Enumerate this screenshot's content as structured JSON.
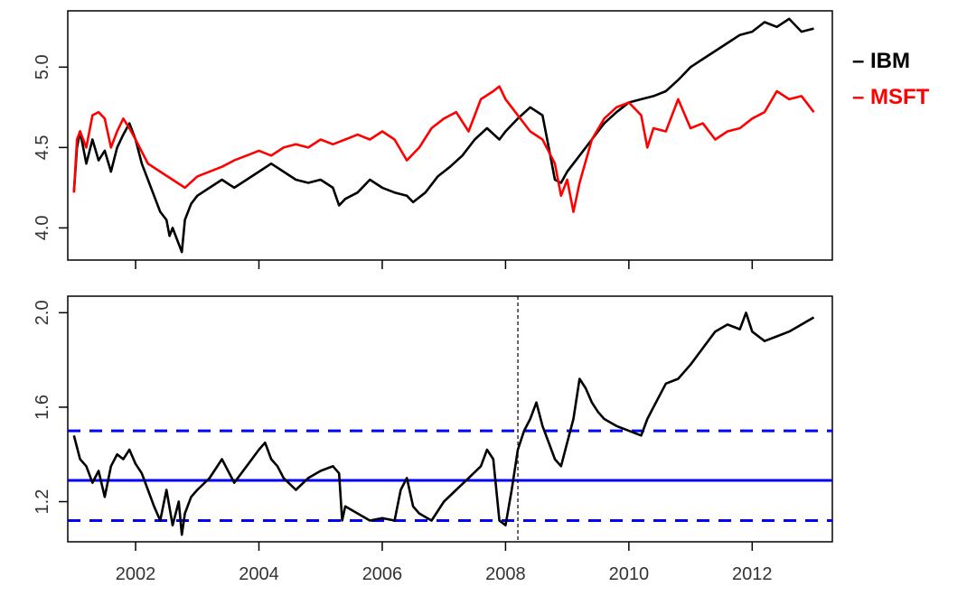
{
  "chart_data": [
    {
      "type": "line",
      "title": "",
      "xlabel": "",
      "ylabel": "",
      "xlim": [
        2000.9,
        2013.3
      ],
      "ylim": [
        3.8,
        5.35
      ],
      "yticks": [
        4.0,
        4.5,
        5.0
      ],
      "ytick_labels": [
        "4.0",
        "4.5",
        "5.0"
      ],
      "xticks": [
        2002,
        2004,
        2006,
        2008,
        2010,
        2012
      ],
      "xtick_labels_shown": false,
      "grid": false,
      "legend_position": "right",
      "series": [
        {
          "name": "IBM",
          "color": "#000000",
          "x": [
            2001.0,
            2001.05,
            2001.1,
            2001.2,
            2001.3,
            2001.4,
            2001.5,
            2001.6,
            2001.7,
            2001.8,
            2001.9,
            2002.0,
            2002.1,
            2002.2,
            2002.3,
            2002.4,
            2002.5,
            2002.55,
            2002.6,
            2002.7,
            2002.75,
            2002.8,
            2002.9,
            2003.0,
            2003.2,
            2003.4,
            2003.6,
            2003.8,
            2004.0,
            2004.2,
            2004.4,
            2004.6,
            2004.8,
            2005.0,
            2005.2,
            2005.3,
            2005.4,
            2005.6,
            2005.8,
            2006.0,
            2006.2,
            2006.4,
            2006.5,
            2006.7,
            2006.9,
            2007.1,
            2007.3,
            2007.5,
            2007.7,
            2007.9,
            2008.0,
            2008.2,
            2008.4,
            2008.6,
            2008.7,
            2008.8,
            2008.9,
            2009.0,
            2009.2,
            2009.4,
            2009.6,
            2009.8,
            2010.0,
            2010.2,
            2010.4,
            2010.6,
            2010.8,
            2011.0,
            2011.2,
            2011.4,
            2011.6,
            2011.8,
            2012.0,
            2012.2,
            2012.4,
            2012.6,
            2012.8,
            2013.0
          ],
          "values": [
            4.22,
            4.5,
            4.6,
            4.4,
            4.55,
            4.42,
            4.48,
            4.35,
            4.5,
            4.58,
            4.65,
            4.55,
            4.4,
            4.3,
            4.2,
            4.1,
            4.05,
            3.95,
            4.0,
            3.9,
            3.85,
            4.05,
            4.15,
            4.2,
            4.25,
            4.3,
            4.25,
            4.3,
            4.35,
            4.4,
            4.35,
            4.3,
            4.28,
            4.3,
            4.25,
            4.14,
            4.18,
            4.22,
            4.3,
            4.25,
            4.22,
            4.2,
            4.16,
            4.22,
            4.32,
            4.38,
            4.45,
            4.55,
            4.62,
            4.55,
            4.6,
            4.68,
            4.75,
            4.7,
            4.5,
            4.3,
            4.28,
            4.35,
            4.45,
            4.55,
            4.65,
            4.72,
            4.78,
            4.8,
            4.82,
            4.85,
            4.92,
            5.0,
            5.05,
            5.1,
            5.15,
            5.2,
            5.22,
            5.28,
            5.25,
            5.3,
            5.22,
            5.24
          ]
        },
        {
          "name": "MSFT",
          "color": "#ff0000",
          "x": [
            2001.0,
            2001.05,
            2001.1,
            2001.2,
            2001.3,
            2001.4,
            2001.5,
            2001.6,
            2001.7,
            2001.8,
            2001.9,
            2002.0,
            2002.2,
            2002.4,
            2002.6,
            2002.8,
            2003.0,
            2003.2,
            2003.4,
            2003.6,
            2003.8,
            2004.0,
            2004.2,
            2004.4,
            2004.6,
            2004.8,
            2005.0,
            2005.2,
            2005.4,
            2005.6,
            2005.8,
            2006.0,
            2006.2,
            2006.4,
            2006.6,
            2006.8,
            2007.0,
            2007.2,
            2007.4,
            2007.6,
            2007.8,
            2007.9,
            2008.0,
            2008.2,
            2008.4,
            2008.6,
            2008.8,
            2008.9,
            2009.0,
            2009.1,
            2009.2,
            2009.4,
            2009.6,
            2009.8,
            2010.0,
            2010.2,
            2010.3,
            2010.4,
            2010.6,
            2010.8,
            2011.0,
            2011.2,
            2011.4,
            2011.6,
            2011.8,
            2012.0,
            2012.2,
            2012.4,
            2012.6,
            2012.8,
            2013.0
          ],
          "values": [
            4.22,
            4.55,
            4.6,
            4.5,
            4.7,
            4.72,
            4.68,
            4.5,
            4.6,
            4.68,
            4.62,
            4.55,
            4.4,
            4.35,
            4.3,
            4.25,
            4.32,
            4.35,
            4.38,
            4.42,
            4.45,
            4.48,
            4.45,
            4.5,
            4.52,
            4.5,
            4.55,
            4.52,
            4.55,
            4.58,
            4.55,
            4.6,
            4.55,
            4.42,
            4.5,
            4.62,
            4.68,
            4.72,
            4.6,
            4.8,
            4.85,
            4.88,
            4.8,
            4.7,
            4.6,
            4.55,
            4.4,
            4.2,
            4.3,
            4.1,
            4.28,
            4.55,
            4.68,
            4.75,
            4.78,
            4.7,
            4.5,
            4.62,
            4.6,
            4.8,
            4.62,
            4.65,
            4.55,
            4.6,
            4.62,
            4.68,
            4.72,
            4.85,
            4.8,
            4.82,
            4.72
          ]
        }
      ]
    },
    {
      "type": "line",
      "title": "",
      "xlabel": "",
      "ylabel": "",
      "xlim": [
        2000.9,
        2013.3
      ],
      "ylim": [
        1.03,
        2.07
      ],
      "yticks": [
        1.2,
        1.6,
        2.0
      ],
      "ytick_labels": [
        "1.2",
        "1.6",
        "2.0"
      ],
      "xticks": [
        2002,
        2004,
        2006,
        2008,
        2010,
        2012
      ],
      "xtick_labels": [
        "2002",
        "2004",
        "2006",
        "2008",
        "2010",
        "2012"
      ],
      "grid": false,
      "series": [
        {
          "color": "#000000",
          "x": [
            2001.0,
            2001.1,
            2001.2,
            2001.3,
            2001.4,
            2001.5,
            2001.6,
            2001.7,
            2001.8,
            2001.9,
            2002.0,
            2002.1,
            2002.2,
            2002.3,
            2002.4,
            2002.5,
            2002.6,
            2002.7,
            2002.75,
            2002.8,
            2002.9,
            2003.0,
            2003.2,
            2003.4,
            2003.6,
            2003.8,
            2004.0,
            2004.1,
            2004.2,
            2004.3,
            2004.4,
            2004.6,
            2004.8,
            2005.0,
            2005.2,
            2005.3,
            2005.35,
            2005.4,
            2005.6,
            2005.8,
            2006.0,
            2006.2,
            2006.3,
            2006.4,
            2006.5,
            2006.6,
            2006.8,
            2007.0,
            2007.2,
            2007.4,
            2007.6,
            2007.7,
            2007.8,
            2007.9,
            2008.0,
            2008.1,
            2008.2,
            2008.3,
            2008.4,
            2008.5,
            2008.6,
            2008.7,
            2008.8,
            2008.9,
            2009.0,
            2009.1,
            2009.2,
            2009.3,
            2009.4,
            2009.5,
            2009.6,
            2009.8,
            2010.0,
            2010.2,
            2010.3,
            2010.4,
            2010.6,
            2010.8,
            2011.0,
            2011.2,
            2011.4,
            2011.6,
            2011.8,
            2011.9,
            2012.0,
            2012.2,
            2012.4,
            2012.6,
            2012.8,
            2013.0
          ],
          "values": [
            1.48,
            1.38,
            1.35,
            1.28,
            1.33,
            1.22,
            1.35,
            1.4,
            1.38,
            1.42,
            1.36,
            1.32,
            1.25,
            1.18,
            1.12,
            1.25,
            1.1,
            1.2,
            1.06,
            1.15,
            1.22,
            1.25,
            1.3,
            1.38,
            1.28,
            1.35,
            1.42,
            1.45,
            1.38,
            1.35,
            1.3,
            1.25,
            1.3,
            1.33,
            1.35,
            1.32,
            1.12,
            1.18,
            1.15,
            1.12,
            1.13,
            1.12,
            1.25,
            1.3,
            1.18,
            1.15,
            1.12,
            1.2,
            1.25,
            1.3,
            1.35,
            1.42,
            1.38,
            1.12,
            1.1,
            1.25,
            1.42,
            1.5,
            1.55,
            1.62,
            1.52,
            1.45,
            1.38,
            1.35,
            1.45,
            1.55,
            1.72,
            1.68,
            1.62,
            1.58,
            1.55,
            1.52,
            1.5,
            1.48,
            1.55,
            1.6,
            1.7,
            1.72,
            1.78,
            1.85,
            1.92,
            1.95,
            1.93,
            2.0,
            1.92,
            1.88,
            1.9,
            1.92,
            1.95,
            1.98
          ]
        }
      ],
      "reference_lines": [
        {
          "type": "horizontal",
          "y": 1.29,
          "style": "solid",
          "color": "#0000ff"
        },
        {
          "type": "horizontal",
          "y": 1.5,
          "style": "dashed",
          "color": "#0000ff"
        },
        {
          "type": "horizontal",
          "y": 1.12,
          "style": "dashed",
          "color": "#0000ff"
        },
        {
          "type": "vertical",
          "x": 2008.2,
          "style": "dashed",
          "color": "#000000"
        }
      ]
    }
  ]
}
